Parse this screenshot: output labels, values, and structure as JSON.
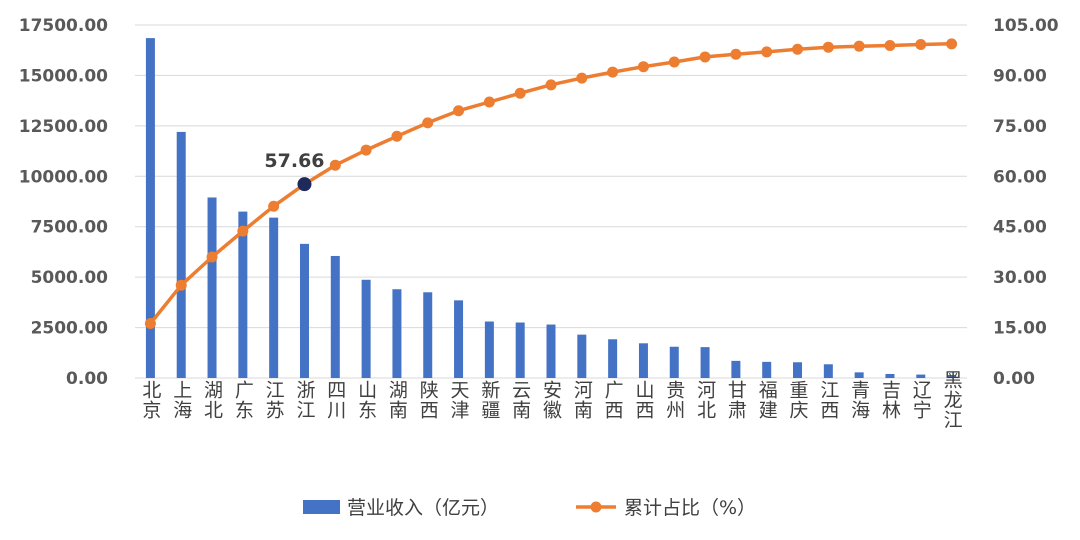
{
  "chart_data": {
    "type": "bar+line",
    "categories": [
      "北京",
      "上海",
      "湖北",
      "广东",
      "江苏",
      "浙江",
      "四川",
      "山东",
      "湖南",
      "陕西",
      "天津",
      "新疆",
      "云南",
      "安徽",
      "河南",
      "广西",
      "山西",
      "贵州",
      "河北",
      "甘肃",
      "福建",
      "重庆",
      "江西",
      "青海",
      "吉林",
      "辽宁",
      "黑龙江"
    ],
    "series": [
      {
        "name": "营业收入（亿元）",
        "type": "bar",
        "axis": "left",
        "color": "#4472C4",
        "values": [
          16850,
          12200,
          8950,
          8250,
          7950,
          6650,
          6050,
          4870,
          4400,
          4250,
          3850,
          2800,
          2750,
          2650,
          2150,
          1920,
          1720,
          1550,
          1530,
          850,
          800,
          780,
          680,
          280,
          200,
          170,
          150
        ]
      },
      {
        "name": "累计占比（%）",
        "type": "line",
        "axis": "right",
        "color": "#ED7D31",
        "values": [
          16.2,
          27.6,
          36.0,
          43.7,
          51.1,
          57.66,
          63.3,
          67.8,
          71.9,
          75.9,
          79.5,
          82.1,
          84.7,
          87.2,
          89.2,
          91.0,
          92.6,
          94.0,
          95.5,
          96.3,
          97.0,
          97.8,
          98.4,
          98.7,
          98.9,
          99.2,
          99.4
        ]
      }
    ],
    "y_left": {
      "min": 0,
      "max": 17500,
      "step": 2500,
      "decimals": 2
    },
    "y_right": {
      "min": 0,
      "max": 105,
      "step": 15,
      "decimals": 2
    },
    "grid": true,
    "legend_position": "bottom",
    "annotation": {
      "label": "57.66",
      "category": "浙江",
      "series": "累计占比（%）",
      "marker_color": "#1F2A5C"
    }
  }
}
